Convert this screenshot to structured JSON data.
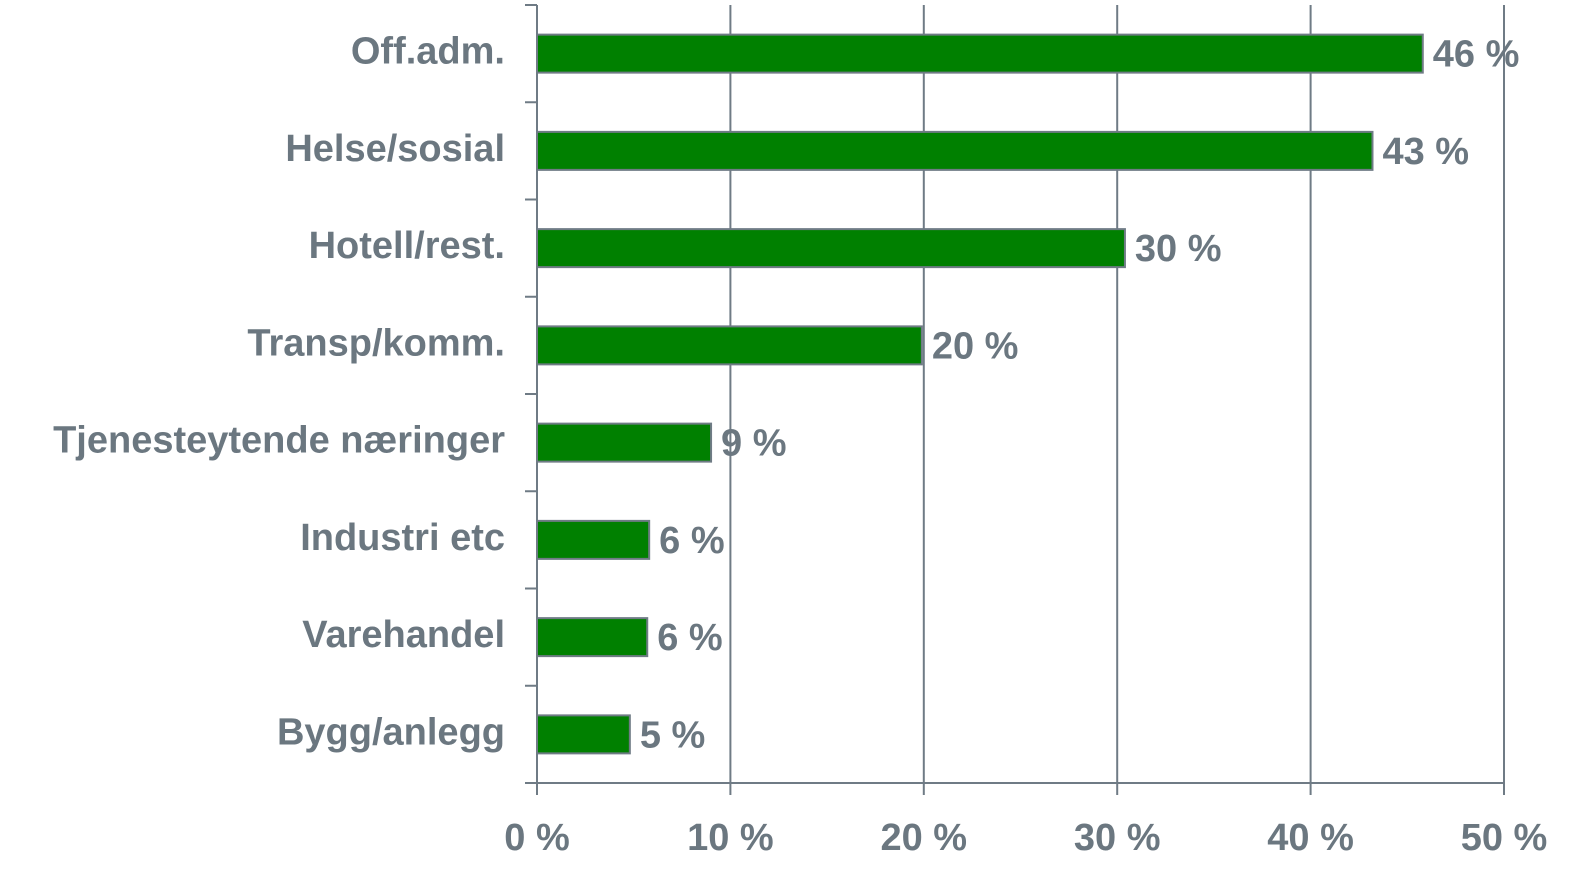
{
  "chart_data": {
    "type": "hbar",
    "categories": [
      "Off.adm.",
      "Helse/sosial",
      "Hotell/rest.",
      "Transp/komm.",
      "Tjenesteytende næringer",
      "Industri etc",
      "Varehandel",
      "Bygg/anlegg"
    ],
    "values": [
      45.8,
      43.2,
      30.4,
      19.9,
      9.0,
      5.8,
      5.7,
      4.8
    ],
    "value_labels": [
      "46 %",
      "43 %",
      "30 %",
      "20 %",
      "9 %",
      "6 %",
      "6 %",
      "5 %"
    ],
    "color": "#008000",
    "xlim": [
      0,
      50
    ],
    "xticks": [
      {
        "value": 0,
        "label": "0 %"
      },
      {
        "value": 10,
        "label": "10 %"
      },
      {
        "value": 20,
        "label": "20 %"
      },
      {
        "value": 30,
        "label": "30 %"
      },
      {
        "value": 40,
        "label": "40 %"
      },
      {
        "value": 50,
        "label": "50 %"
      }
    ],
    "grid": true
  }
}
